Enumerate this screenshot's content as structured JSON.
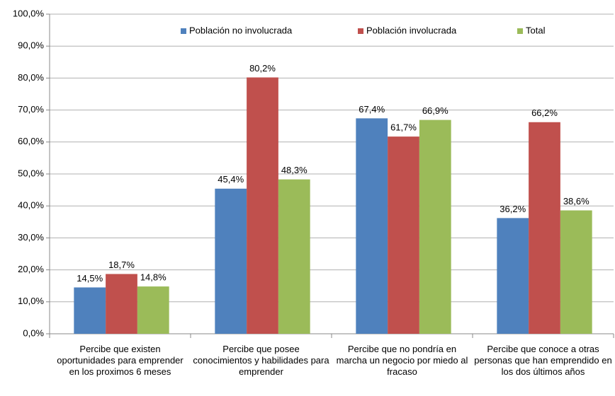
{
  "chart_data": {
    "type": "bar",
    "categories": [
      "Percibe que existen oportunidades para emprender en los proximos 6 meses",
      "Percibe que posee conocimientos y habilidades para emprender",
      "Percibe que no pondría en marcha un negocio por miedo al fracaso",
      "Percibe que conoce a otras personas que han emprendido en los dos últimos años"
    ],
    "series": [
      {
        "name": "Población no involucrada",
        "color": "#4f81bd",
        "values": [
          14.5,
          45.4,
          67.4,
          36.2
        ],
        "value_labels": [
          "14,5%",
          "45,4%",
          "67,4%",
          "36,2%"
        ]
      },
      {
        "name": "Población involucrada",
        "color": "#c0504d",
        "values": [
          18.7,
          80.2,
          61.7,
          66.2
        ],
        "value_labels": [
          "18,7%",
          "80,2%",
          "61,7%",
          "66,2%"
        ]
      },
      {
        "name": "Total",
        "color": "#9bbb59",
        "values": [
          14.8,
          48.3,
          66.9,
          38.6
        ],
        "value_labels": [
          "14,8%",
          "48,3%",
          "66,9%",
          "38,6%"
        ]
      }
    ],
    "ylim": [
      0,
      100
    ],
    "yticks": [
      {
        "value": 0,
        "label": "0,0%"
      },
      {
        "value": 10,
        "label": "10,0%"
      },
      {
        "value": 20,
        "label": "20,0%"
      },
      {
        "value": 30,
        "label": "30,0%"
      },
      {
        "value": 40,
        "label": "40,0%"
      },
      {
        "value": 50,
        "label": "50,0%"
      },
      {
        "value": 60,
        "label": "60,0%"
      },
      {
        "value": 70,
        "label": "70,0%"
      },
      {
        "value": 80,
        "label": "80,0%"
      },
      {
        "value": 90,
        "label": "90,0%"
      },
      {
        "value": 100,
        "label": "100,0%"
      }
    ],
    "grid": true,
    "legend": "top"
  }
}
